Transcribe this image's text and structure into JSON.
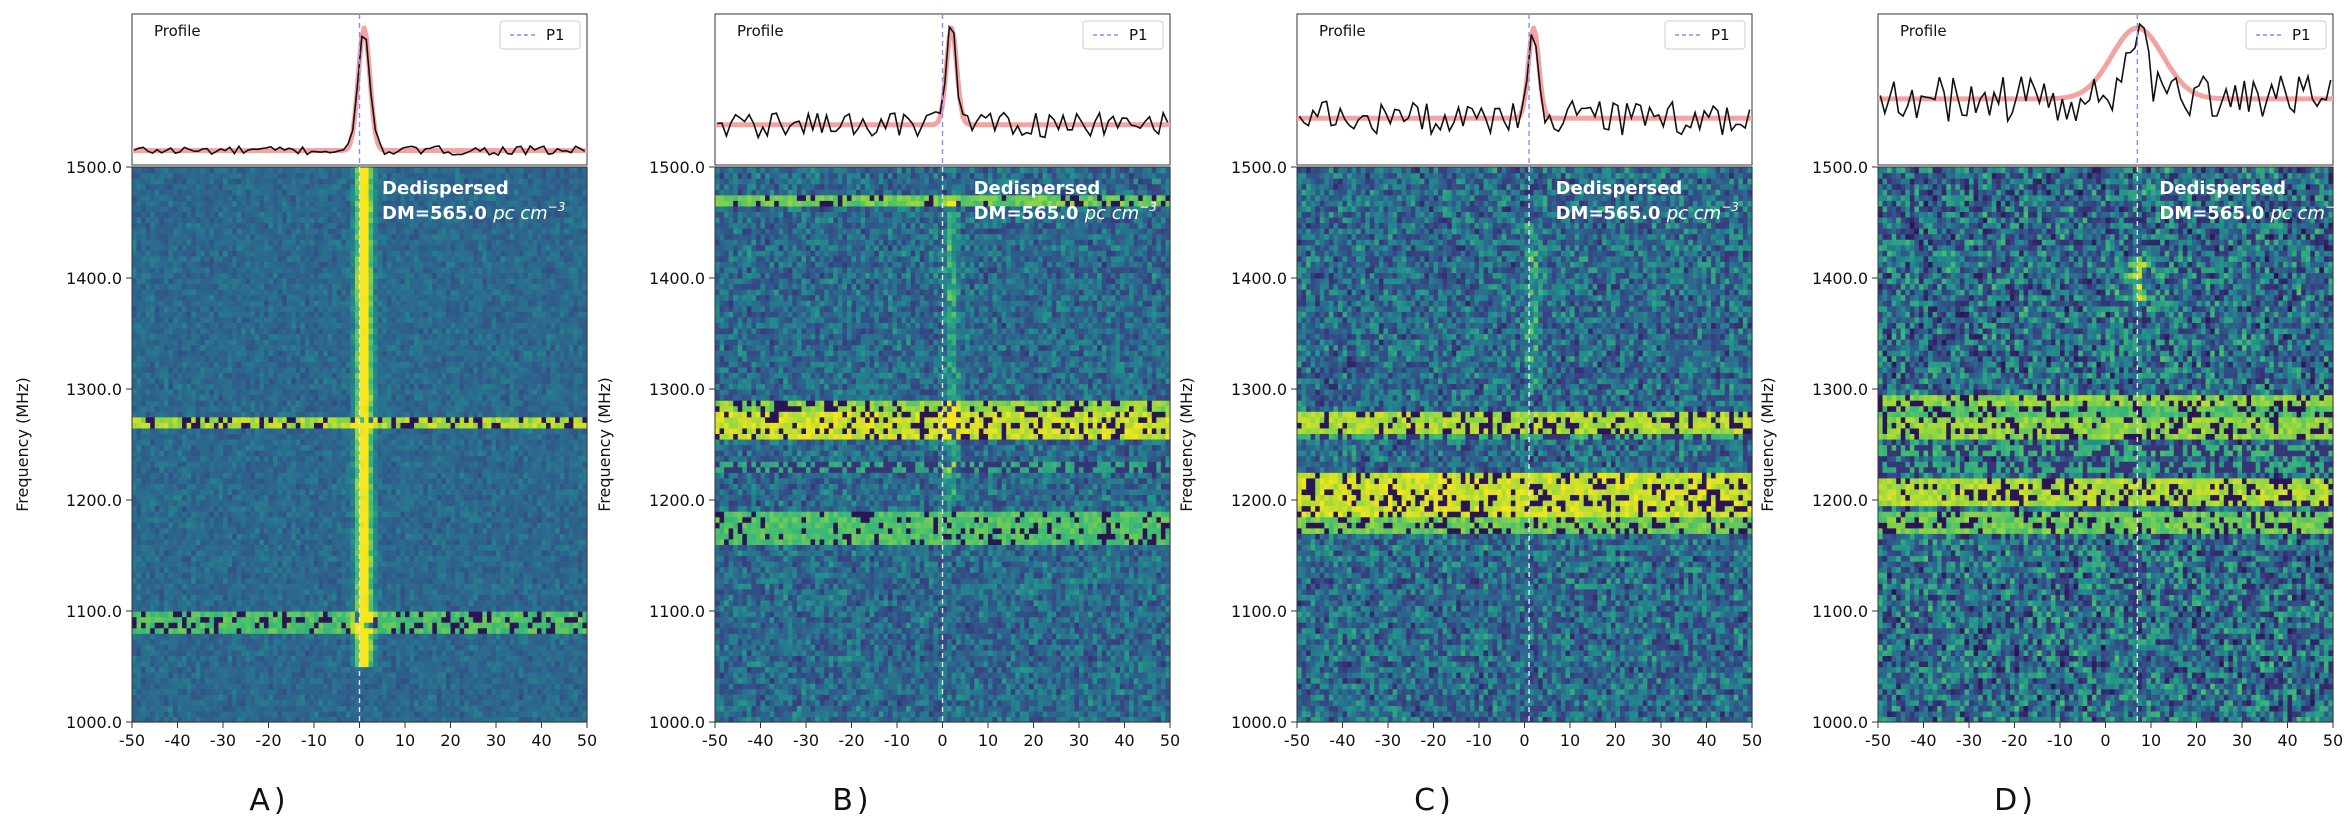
{
  "figure": {
    "description_labels": [
      "A)",
      "B)",
      "C)",
      "D)"
    ]
  },
  "colors": {
    "profile_line": "#111111",
    "fit_line": "#f4a3a3",
    "marker_line": "#8c8cf0",
    "legend_border": "#cccccc",
    "cmap_low": "#2b1050",
    "cmap_mid": "#2f6d8e",
    "cmap_high": "#f7e61c"
  },
  "chart_data": [
    {
      "type": "heatmap",
      "panel_label": "A)",
      "title": "",
      "profile_label": "Profile",
      "legend": [
        "P1"
      ],
      "annotation": [
        "Dedispersed",
        "DM=565.0",
        "pc cm",
        "−3"
      ],
      "xlabel": "",
      "ylabel": "Frequency (MHz)",
      "xlim": [
        -50,
        50
      ],
      "ylim": [
        1000.0,
        1500.0
      ],
      "xticks": [
        "-50",
        "-40",
        "-30",
        "-20",
        "-10",
        "0",
        "10",
        "20",
        "30",
        "40",
        "50"
      ],
      "yticks": [
        "1000.0",
        "1100.0",
        "1200.0",
        "1300.0",
        "1400.0",
        "1500.0"
      ],
      "marker_time": 0,
      "pulse_time": 1,
      "pulse_width": 1.8,
      "pulse_span": [
        1050.0,
        1500.0
      ],
      "noise_level": 0.08,
      "profile_baseline": 0.05,
      "fit_peak_time": 1,
      "fit_width": 1.8,
      "rfi_bands": [
        {
          "freq": 1270.0,
          "level": 0.95,
          "width": 2
        },
        {
          "freq": 1088.0,
          "level": 0.8,
          "width": 4
        }
      ]
    },
    {
      "type": "heatmap",
      "panel_label": "B)",
      "title": "",
      "profile_label": "Profile",
      "legend": [
        "P1"
      ],
      "annotation": [
        "Dedispersed",
        "DM=565.0",
        "pc cm",
        "−3"
      ],
      "xlabel": "",
      "ylabel": "Frequency (MHz)",
      "xlim": [
        -50,
        50
      ],
      "ylim": [
        1000.0,
        1500.0
      ],
      "xticks": [
        "-50",
        "-40",
        "-30",
        "-20",
        "-10",
        "0",
        "10",
        "20",
        "30",
        "40",
        "50"
      ],
      "yticks": [
        "1000.0",
        "1100.0",
        "1200.0",
        "1300.0",
        "1400.0",
        "1500.0"
      ],
      "marker_time": 0,
      "pulse_time": 2,
      "pulse_width": 1.6,
      "pulse_span": [
        1200.0,
        1470.0
      ],
      "noise_level": 0.22,
      "profile_baseline": 0.25,
      "fit_peak_time": 2,
      "fit_width": 1.6,
      "rfi_bands": [
        {
          "freq": 1470.0,
          "level": 0.85,
          "width": 2
        },
        {
          "freq": 1280.0,
          "level": 0.9,
          "width": 3
        },
        {
          "freq": 1267.0,
          "level": 1.0,
          "width": 5
        },
        {
          "freq": 1228.0,
          "level": 0.7,
          "width": 2
        },
        {
          "freq": 1175.0,
          "level": 0.8,
          "width": 5
        }
      ]
    },
    {
      "type": "heatmap",
      "panel_label": "C)",
      "title": "",
      "profile_label": "Profile",
      "legend": [
        "P1"
      ],
      "annotation": [
        "Dedispersed",
        "DM=565.0",
        "pc cm",
        "−3"
      ],
      "xlabel": "",
      "ylabel": "Frequency (MHz)",
      "xlim": [
        -50,
        50
      ],
      "ylim": [
        1000.0,
        1500.0
      ],
      "xticks": [
        "-50",
        "-40",
        "-30",
        "-20",
        "-10",
        "0",
        "10",
        "20",
        "30",
        "40",
        "50"
      ],
      "yticks": [
        "1000.0",
        "1100.0",
        "1200.0",
        "1300.0",
        "1400.0",
        "1500.0"
      ],
      "marker_time": 1,
      "pulse_time": 2,
      "pulse_width": 1.6,
      "pulse_span": [
        1300.0,
        1450.0
      ],
      "noise_level": 0.3,
      "profile_baseline": 0.3,
      "fit_peak_time": 2,
      "fit_width": 1.6,
      "rfi_bands": [
        {
          "freq": 1272.0,
          "level": 0.95,
          "width": 4
        },
        {
          "freq": 1262.0,
          "level": 0.75,
          "width": 3
        },
        {
          "freq": 1205.0,
          "level": 1.0,
          "width": 7
        },
        {
          "freq": 1178.0,
          "level": 0.85,
          "width": 4
        }
      ]
    },
    {
      "type": "heatmap",
      "panel_label": "D)",
      "title": "",
      "profile_label": "Profile",
      "legend": [
        "P1"
      ],
      "annotation": [
        "Dedispersed",
        "DM=565.0",
        "pc cm",
        "−3"
      ],
      "xlabel": "",
      "ylabel": "Frequency (MHz)",
      "xlim": [
        -50,
        50
      ],
      "ylim": [
        1000.0,
        1500.0
      ],
      "xticks": [
        "-50",
        "-40",
        "-30",
        "-20",
        "-10",
        "0",
        "10",
        "20",
        "30",
        "40",
        "50"
      ],
      "yticks": [
        "1000.0",
        "1100.0",
        "1200.0",
        "1300.0",
        "1400.0",
        "1500.0"
      ],
      "marker_time": 7,
      "pulse_time": 7,
      "pulse_width": 3,
      "pulse_span": [
        1380.0,
        1420.0
      ],
      "noise_level": 0.4,
      "profile_baseline": 0.45,
      "fit_peak_time": 7,
      "fit_width": 8,
      "rfi_bands": [
        {
          "freq": 1290.0,
          "level": 0.9,
          "width": 2
        },
        {
          "freq": 1278.0,
          "level": 0.8,
          "width": 3
        },
        {
          "freq": 1263.0,
          "level": 0.9,
          "width": 4
        },
        {
          "freq": 1243.0,
          "level": 0.75,
          "width": 2
        },
        {
          "freq": 1228.0,
          "level": 0.7,
          "width": 2
        },
        {
          "freq": 1206.0,
          "level": 0.95,
          "width": 5
        },
        {
          "freq": 1178.0,
          "level": 0.85,
          "width": 4
        }
      ]
    }
  ]
}
